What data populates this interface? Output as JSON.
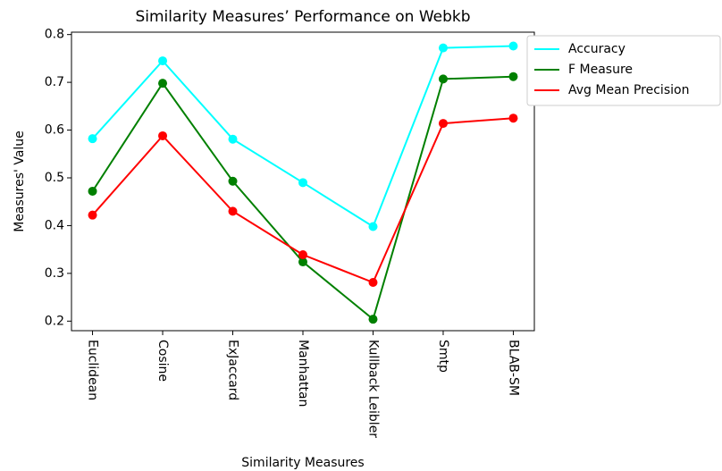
{
  "chart_data": {
    "type": "line",
    "title": "Similarity Measures’ Performance on Webkb",
    "x_label": "Similarity Measures",
    "y_label": "Measures' Value",
    "categories": [
      "Euclidean",
      "Cosine",
      "ExJaccard",
      "Manhattan",
      "Kullback Leibler",
      "Smtp",
      "BLAB-SM"
    ],
    "series": [
      {
        "name": "Accuracy",
        "color": "#00ffff",
        "values": [
          0.582,
          0.745,
          0.581,
          0.49,
          0.398,
          0.772,
          0.776
        ]
      },
      {
        "name": "F Measure",
        "color": "#008000",
        "values": [
          0.472,
          0.698,
          0.493,
          0.324,
          0.204,
          0.707,
          0.712
        ]
      },
      {
        "name": "Avg Mean Precision",
        "color": "#ff0000",
        "values": [
          0.422,
          0.588,
          0.43,
          0.339,
          0.281,
          0.614,
          0.625
        ]
      }
    ],
    "ylim": [
      0.18,
      0.805
    ],
    "yticks": [
      0.2,
      0.3,
      0.4,
      0.5,
      0.6,
      0.7,
      0.8
    ],
    "legend": "outside upper right"
  }
}
